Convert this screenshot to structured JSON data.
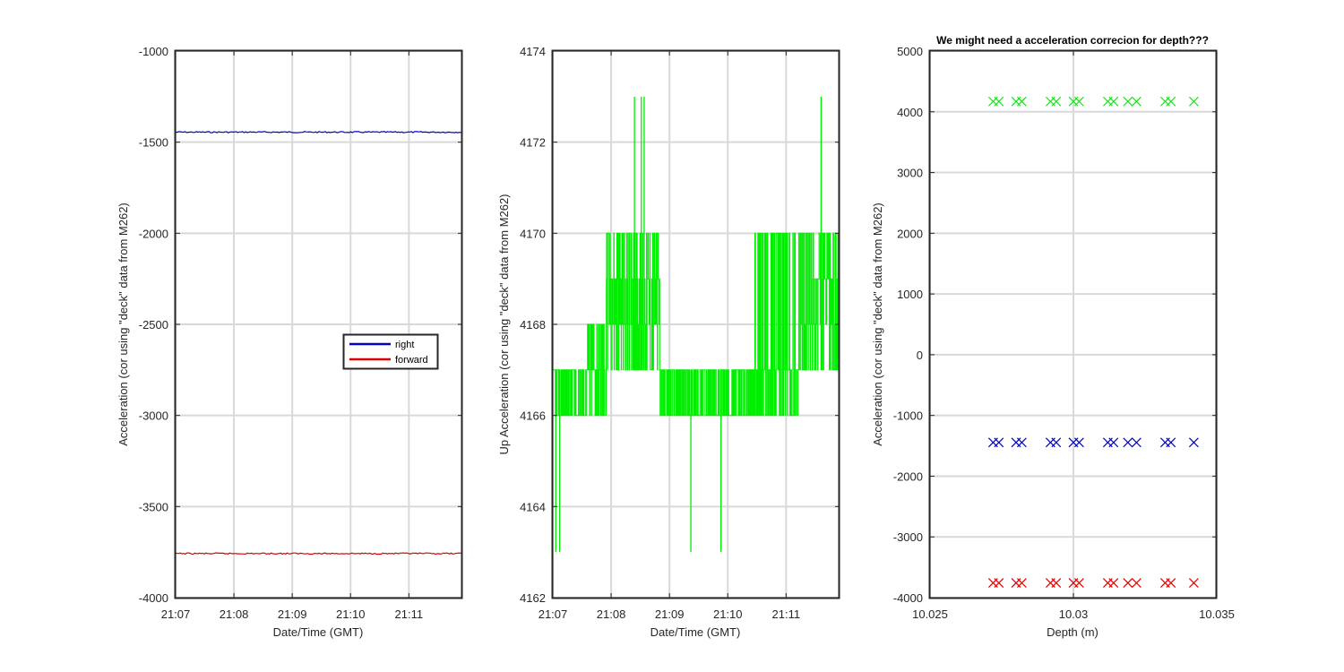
{
  "colors": {
    "right": "#0000cc",
    "forward": "#dd0000",
    "up": "#00ee00",
    "axis": "#262626",
    "grid": "#d9d9d9",
    "background": "#ffffff"
  },
  "chart_data": [
    {
      "type": "line",
      "title": "",
      "xlabel": "Date/Time (GMT)",
      "ylabel": "Acceleration (cor using \"deck\" data from M262)",
      "x_tick_labels": [
        "21:07",
        "21:08",
        "21:09",
        "21:10",
        "21:11"
      ],
      "xlim": [
        "21:07:00",
        "21:11:55"
      ],
      "ylim": [
        -4000,
        -1000
      ],
      "y_ticks": [
        -1000,
        -1500,
        -2000,
        -2500,
        -3000,
        -3500,
        -4000
      ],
      "grid": true,
      "legend_position": "center-right",
      "series": [
        {
          "name": "right",
          "color": "#0000cc",
          "value": -1445,
          "x": [
            "21:07:00",
            "21:11:55"
          ]
        },
        {
          "name": "forward",
          "color": "#dd0000",
          "value": -3758,
          "x": [
            "21:07:00",
            "21:11:55"
          ]
        }
      ]
    },
    {
      "type": "line",
      "title": "",
      "xlabel": "Date/Time (GMT)",
      "ylabel": "Up Acceleration (cor using \"deck\" data from M262)",
      "x_tick_labels": [
        "21:07",
        "21:08",
        "21:09",
        "21:10",
        "21:11"
      ],
      "xlim": [
        "21:07:00",
        "21:11:55"
      ],
      "ylim": [
        4162,
        4174
      ],
      "y_ticks": [
        4174,
        4172,
        4170,
        4168,
        4166,
        4164,
        4162
      ],
      "grid": true,
      "series": [
        {
          "color": "#00ee00",
          "regime_segments": [
            {
              "x": [
                "21:07:00",
                "21:07:35"
              ],
              "levels": [
                4166,
                4167
              ]
            },
            {
              "x": [
                "21:07:35",
                "21:07:55"
              ],
              "levels": [
                4166,
                4167,
                4168
              ]
            },
            {
              "x": [
                "21:07:55",
                "21:08:50"
              ],
              "levels": [
                4167,
                4168,
                4169,
                4170
              ]
            },
            {
              "x": [
                "21:08:50",
                "21:10:25"
              ],
              "levels": [
                4166,
                4167
              ]
            },
            {
              "x": [
                "21:10:25",
                "21:11:15"
              ],
              "levels": [
                4166,
                4167,
                4170
              ]
            },
            {
              "x": [
                "21:11:15",
                "21:11:55"
              ],
              "levels": [
                4167,
                4168,
                4169,
                4170
              ]
            }
          ],
          "spikes": [
            {
              "x": "21:07:03",
              "y": 4163
            },
            {
              "x": "21:07:07",
              "y": 4163
            },
            {
              "x": "21:08:24",
              "y": 4173
            },
            {
              "x": "21:08:31",
              "y": 4173
            },
            {
              "x": "21:08:34",
              "y": 4173
            },
            {
              "x": "21:09:22",
              "y": 4163
            },
            {
              "x": "21:09:53",
              "y": 4163
            },
            {
              "x": "21:11:36",
              "y": 4173
            }
          ]
        }
      ]
    },
    {
      "type": "scatter",
      "title": "We might need a acceleration correcion for depth???",
      "xlabel": "Depth (m)",
      "ylabel": "Acceleration (cor using \"deck\" data from M262)",
      "xlim": [
        10.025,
        10.035
      ],
      "x_ticks": [
        10.025,
        10.03,
        10.035
      ],
      "x_tick_labels": [
        "10.025",
        "10.03",
        "10.035"
      ],
      "ylim": [
        -4000,
        5000
      ],
      "y_ticks": [
        5000,
        4000,
        3000,
        2000,
        1000,
        0,
        -1000,
        -2000,
        -3000,
        -4000
      ],
      "grid": true,
      "marker": "x",
      "x": [
        10.0272,
        10.0274,
        10.028,
        10.0282,
        10.0292,
        10.0294,
        10.03,
        10.0302,
        10.0312,
        10.0314,
        10.0319,
        10.0322,
        10.0332,
        10.0334,
        10.0342
      ],
      "series": [
        {
          "color": "#00ee00",
          "value": 4170
        },
        {
          "color": "#0000cc",
          "value": -1445
        },
        {
          "color": "#dd0000",
          "value": -3758
        }
      ]
    }
  ]
}
